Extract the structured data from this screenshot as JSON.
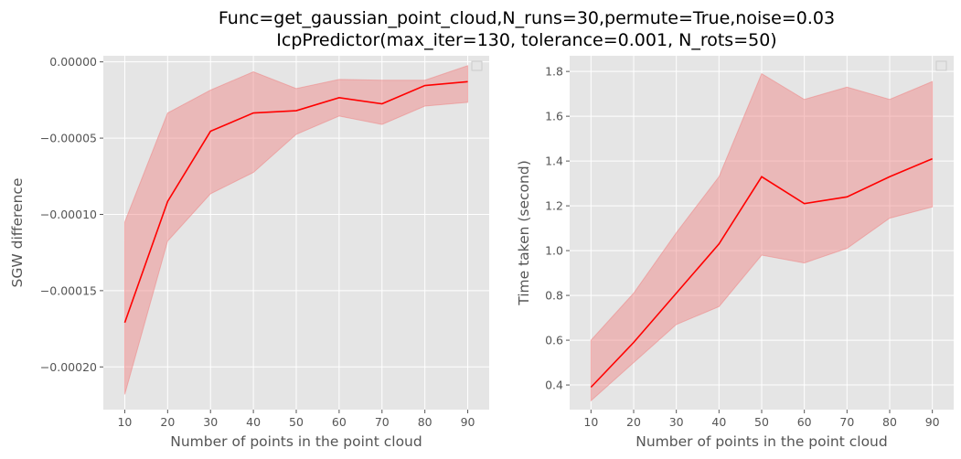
{
  "figure": {
    "title_line1": "Func=get_gaussian_point_cloud,N_runs=30,permute=True,noise=0.03",
    "title_line2": "IcpPredictor(max_iter=130, tolerance=0.001, N_rots=50)"
  },
  "colors": {
    "line": "#ff0000",
    "band": "#f08080",
    "axes_bg": "#e5e5e5",
    "grid": "#ffffff"
  },
  "chart_data": [
    {
      "type": "line",
      "xlabel": "Number of points in the point cloud",
      "ylabel": "SGW difference",
      "x": [
        10,
        20,
        30,
        40,
        50,
        60,
        70,
        80,
        90
      ],
      "xlim": [
        5,
        95
      ],
      "ylim": [
        -0.000228,
        4e-06
      ],
      "xticks": [
        10,
        20,
        30,
        40,
        50,
        60,
        70,
        80,
        90
      ],
      "xtick_labels": [
        "10",
        "20",
        "30",
        "40",
        "50",
        "60",
        "70",
        "80",
        "90"
      ],
      "yticks": [
        -0.0002,
        -0.00015,
        -0.0001,
        -5e-05,
        0
      ],
      "ytick_labels": [
        "−0.00020",
        "−0.00015",
        "−0.00010",
        "−0.00005",
        "0.00000"
      ],
      "grid": true,
      "legend": "top-right (empty)",
      "series": [
        {
          "values": [
            -0.000171,
            -9.15e-05,
            -4.55e-05,
            -3.35e-05,
            -3.2e-05,
            -2.35e-05,
            -2.75e-05,
            -1.55e-05,
            -1.3e-05
          ],
          "lower": [
            -0.000218,
            -0.0001175,
            -8.65e-05,
            -7.25e-05,
            -4.75e-05,
            -3.55e-05,
            -4.1e-05,
            -2.9e-05,
            -2.65e-05
          ],
          "upper": [
            -0.000105,
            -3.35e-05,
            -1.85e-05,
            -6.5e-06,
            -1.75e-05,
            -1.15e-05,
            -1.2e-05,
            -1.2e-05,
            -2.5e-06
          ]
        }
      ]
    },
    {
      "type": "line",
      "xlabel": "Number of points in the point cloud",
      "ylabel": "Time taken (second)",
      "x": [
        10,
        20,
        30,
        40,
        50,
        60,
        70,
        80,
        90
      ],
      "xlim": [
        5,
        95
      ],
      "ylim": [
        0.29,
        1.87
      ],
      "xticks": [
        10,
        20,
        30,
        40,
        50,
        60,
        70,
        80,
        90
      ],
      "xtick_labels": [
        "10",
        "20",
        "30",
        "40",
        "50",
        "60",
        "70",
        "80",
        "90"
      ],
      "yticks": [
        0.4,
        0.6,
        0.8,
        1.0,
        1.2,
        1.4,
        1.6,
        1.8
      ],
      "ytick_labels": [
        "0.4",
        "0.6",
        "0.8",
        "1.0",
        "1.2",
        "1.4",
        "1.6",
        "1.8"
      ],
      "grid": true,
      "legend": "top-right (empty)",
      "series": [
        {
          "values": [
            0.39,
            0.59,
            0.81,
            1.03,
            1.33,
            1.21,
            1.24,
            1.33,
            1.41
          ],
          "lower": [
            0.33,
            0.5,
            0.67,
            0.75,
            0.98,
            0.945,
            1.01,
            1.145,
            1.195
          ],
          "upper": [
            0.6,
            0.81,
            1.08,
            1.33,
            1.79,
            1.675,
            1.73,
            1.675,
            1.755
          ]
        }
      ]
    }
  ]
}
